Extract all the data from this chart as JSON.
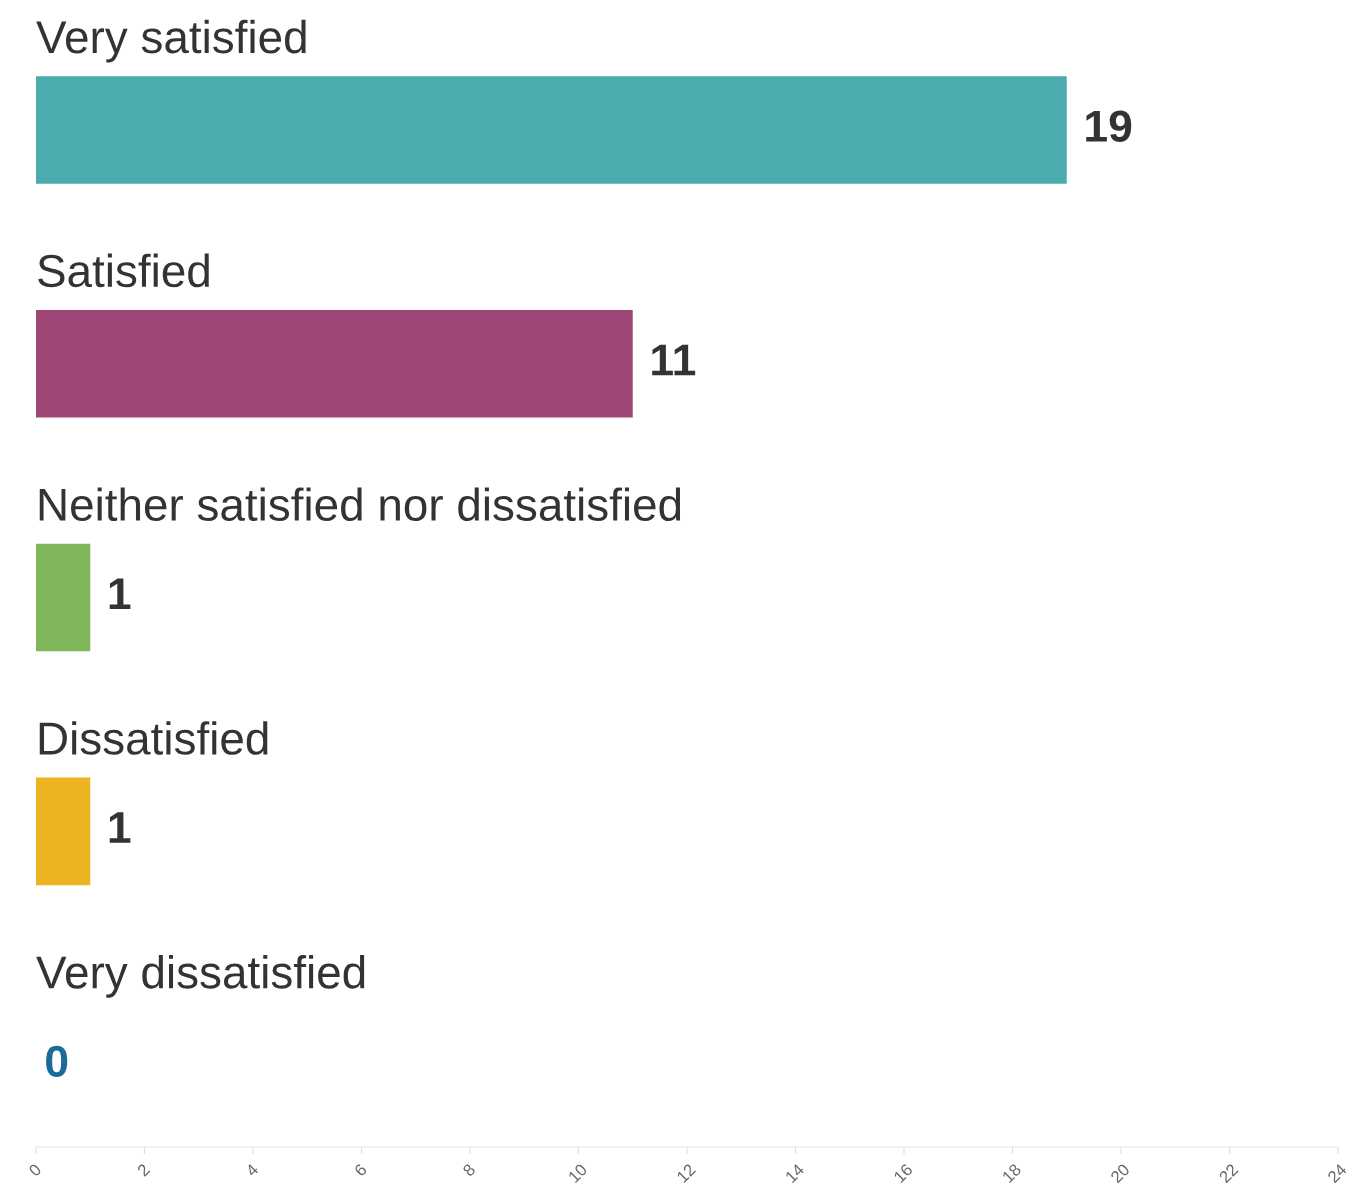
{
  "chart_data": {
    "type": "bar",
    "orientation": "horizontal",
    "categories": [
      "Very satisfied",
      "Satisfied",
      "Neither satisfied nor dissatisfied",
      "Dissatisfied",
      "Very dissatisfied"
    ],
    "values": [
      19,
      11,
      1,
      1,
      0
    ],
    "colors": [
      "#4aacae",
      "#9e4777",
      "#80b65a",
      "#ecb423",
      "#1a6b9a"
    ],
    "data_labels": true,
    "grid": false,
    "legend": false,
    "xlim": [
      0,
      24
    ],
    "xticks": [
      0,
      2,
      4,
      6,
      8,
      10,
      12,
      14,
      16,
      18,
      20,
      22,
      24
    ]
  }
}
